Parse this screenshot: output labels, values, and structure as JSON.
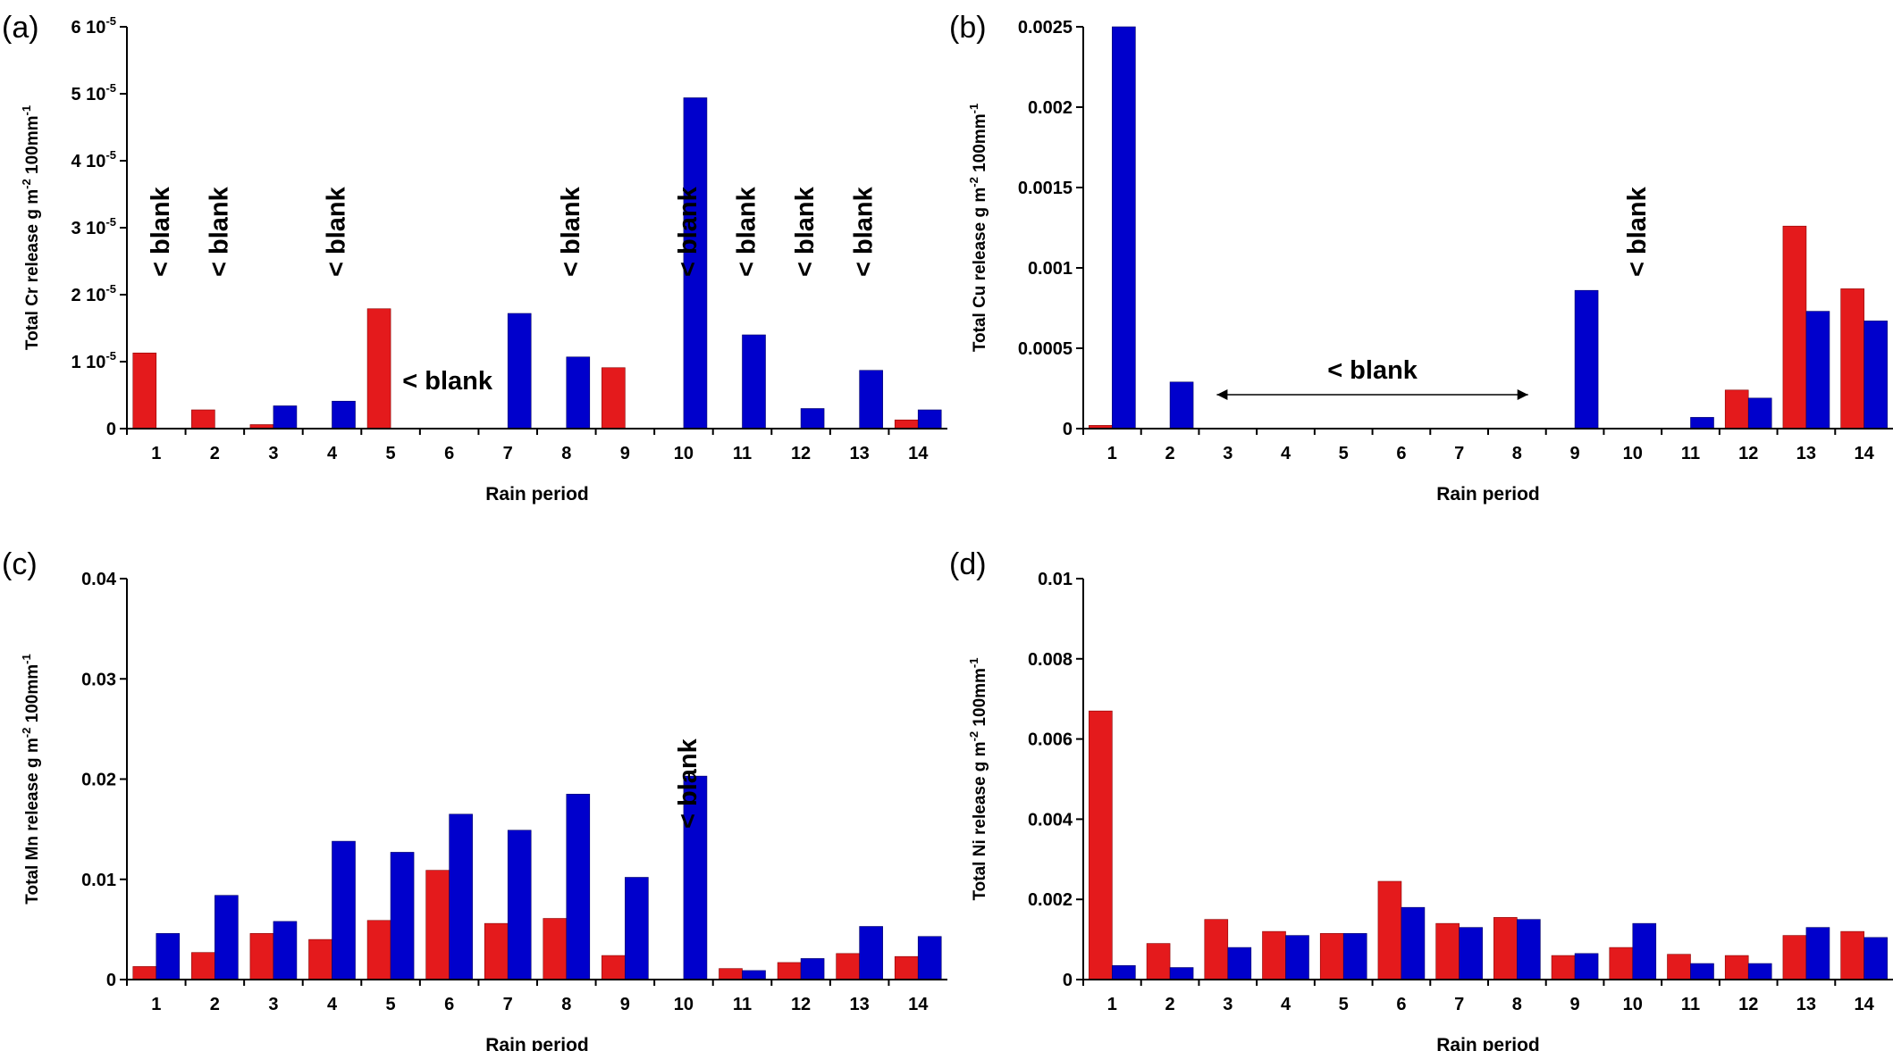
{
  "series_colors": {
    "red": "#e41a1c",
    "blue": "#0000cc"
  },
  "chart_data": [
    {
      "type": "bar",
      "panel_label": "(a)",
      "xlabel": "Rain period",
      "ylabel": [
        "Total Cr release g m",
        "-2",
        " 100mm",
        "-1"
      ],
      "categories": [
        "1",
        "2",
        "3",
        "4",
        "5",
        "6",
        "7",
        "8",
        "9",
        "10",
        "11",
        "12",
        "13",
        "14"
      ],
      "ylim": [
        0,
        6e-05
      ],
      "yticks": [
        {
          "value": 0,
          "label": "0",
          "exp": ""
        },
        {
          "value": 1e-05,
          "label": "1 10",
          "exp": "-5"
        },
        {
          "value": 2e-05,
          "label": "2 10",
          "exp": "-5"
        },
        {
          "value": 3e-05,
          "label": "3 10",
          "exp": "-5"
        },
        {
          "value": 4e-05,
          "label": "4 10",
          "exp": "-5"
        },
        {
          "value": 5e-05,
          "label": "5 10",
          "exp": "-5"
        },
        {
          "value": 6e-05,
          "label": "6 10",
          "exp": "-5"
        }
      ],
      "series": [
        {
          "color": "red",
          "values": [
            1.13e-05,
            2.8e-06,
            6e-07,
            0,
            1.79e-05,
            0,
            0,
            0,
            9.1e-06,
            0,
            0,
            0,
            0,
            1.3e-06
          ]
        },
        {
          "color": "blue",
          "values": [
            0,
            0,
            3.4e-06,
            4.1e-06,
            0,
            0,
            1.72e-05,
            1.07e-05,
            0,
            4.94e-05,
            1.4e-05,
            3e-06,
            8.7e-06,
            2.8e-06
          ]
        }
      ],
      "annotations": [
        {
          "text": "< blank",
          "at": 1,
          "orient": "vertical"
        },
        {
          "text": "< blank",
          "at": 2,
          "orient": "vertical"
        },
        {
          "text": "< blank",
          "at": 4,
          "orient": "vertical"
        },
        {
          "text": "< blank",
          "at": 6,
          "orient": "horizontal"
        },
        {
          "text": "< blank",
          "at": 8,
          "orient": "vertical"
        },
        {
          "text": "< blank",
          "at": 10,
          "orient": "vertical"
        },
        {
          "text": "< blank",
          "at": 11,
          "orient": "vertical"
        },
        {
          "text": "< blank",
          "at": 12,
          "orient": "vertical"
        },
        {
          "text": "< blank",
          "at": 13,
          "orient": "vertical"
        }
      ]
    },
    {
      "type": "bar",
      "panel_label": "(b)",
      "xlabel": "Rain period",
      "ylabel": [
        "Total Cu release g m",
        "-2",
        " 100mm",
        "-1"
      ],
      "categories": [
        "1",
        "2",
        "3",
        "4",
        "5",
        "6",
        "7",
        "8",
        "9",
        "10",
        "11",
        "12",
        "13",
        "14"
      ],
      "ylim": [
        0,
        0.0025
      ],
      "yticks": [
        {
          "value": 0,
          "label": "0",
          "exp": ""
        },
        {
          "value": 0.0005,
          "label": "0.0005",
          "exp": ""
        },
        {
          "value": 0.001,
          "label": "0.001",
          "exp": ""
        },
        {
          "value": 0.0015,
          "label": "0.0015",
          "exp": ""
        },
        {
          "value": 0.002,
          "label": "0.002",
          "exp": ""
        },
        {
          "value": 0.0025,
          "label": "0.0025",
          "exp": ""
        }
      ],
      "series": [
        {
          "color": "red",
          "values": [
            2e-05,
            0,
            0,
            0,
            0,
            0,
            0,
            0,
            0,
            0,
            0,
            0.00024,
            0.00126,
            0.00087
          ]
        },
        {
          "color": "blue",
          "values": [
            0.0025,
            0.00029,
            0,
            0,
            0,
            0,
            0,
            0,
            0.00086,
            0,
            7e-05,
            0.00019,
            0.00073,
            0.00067
          ]
        }
      ],
      "annotations": [
        {
          "text": "< blank",
          "at": 5.5,
          "orient": "range",
          "from": 3,
          "to": 8
        },
        {
          "text": "< blank",
          "at": 10,
          "orient": "vertical"
        }
      ]
    },
    {
      "type": "bar",
      "panel_label": "(c)",
      "xlabel": "Rain period",
      "ylabel": [
        "Total Mn release g m",
        "-2",
        " 100mm",
        "-1"
      ],
      "categories": [
        "1",
        "2",
        "3",
        "4",
        "5",
        "6",
        "7",
        "8",
        "9",
        "10",
        "11",
        "12",
        "13",
        "14"
      ],
      "ylim": [
        0,
        0.04
      ],
      "yticks": [
        {
          "value": 0,
          "label": "0",
          "exp": ""
        },
        {
          "value": 0.01,
          "label": "0.01",
          "exp": ""
        },
        {
          "value": 0.02,
          "label": "0.02",
          "exp": ""
        },
        {
          "value": 0.03,
          "label": "0.03",
          "exp": ""
        },
        {
          "value": 0.04,
          "label": "0.04",
          "exp": ""
        }
      ],
      "series": [
        {
          "color": "red",
          "values": [
            0.0013,
            0.0027,
            0.0046,
            0.004,
            0.0059,
            0.0109,
            0.0056,
            0.0061,
            0.0024,
            0,
            0.0011,
            0.0017,
            0.0026,
            0.0023
          ]
        },
        {
          "color": "blue",
          "values": [
            0.0046,
            0.0084,
            0.0058,
            0.0138,
            0.0127,
            0.0165,
            0.0149,
            0.0185,
            0.0102,
            0.0203,
            0.0009,
            0.0021,
            0.0053,
            0.0043
          ]
        }
      ],
      "annotations": [
        {
          "text": "< blank",
          "at": 10,
          "orient": "vertical"
        }
      ]
    },
    {
      "type": "bar",
      "panel_label": "(d)",
      "xlabel": "Rain period",
      "ylabel": [
        "Total Ni release g m",
        "-2",
        " 100mm",
        "-1"
      ],
      "categories": [
        "1",
        "2",
        "3",
        "4",
        "5",
        "6",
        "7",
        "8",
        "9",
        "10",
        "11",
        "12",
        "13",
        "14"
      ],
      "ylim": [
        0,
        0.01
      ],
      "yticks": [
        {
          "value": 0,
          "label": "0",
          "exp": ""
        },
        {
          "value": 0.002,
          "label": "0.002",
          "exp": ""
        },
        {
          "value": 0.004,
          "label": "0.004",
          "exp": ""
        },
        {
          "value": 0.006,
          "label": "0.006",
          "exp": ""
        },
        {
          "value": 0.008,
          "label": "0.008",
          "exp": ""
        },
        {
          "value": 0.01,
          "label": "0.01",
          "exp": ""
        }
      ],
      "series": [
        {
          "color": "red",
          "values": [
            0.0067,
            0.0009,
            0.0015,
            0.0012,
            0.00115,
            0.00245,
            0.0014,
            0.00155,
            0.0006,
            0.0008,
            0.00063,
            0.0006,
            0.0011,
            0.0012
          ]
        },
        {
          "color": "blue",
          "values": [
            0.00035,
            0.0003,
            0.0008,
            0.0011,
            0.00115,
            0.0018,
            0.0013,
            0.0015,
            0.00065,
            0.0014,
            0.0004,
            0.0004,
            0.0013,
            0.00105
          ]
        }
      ],
      "annotations": []
    }
  ]
}
